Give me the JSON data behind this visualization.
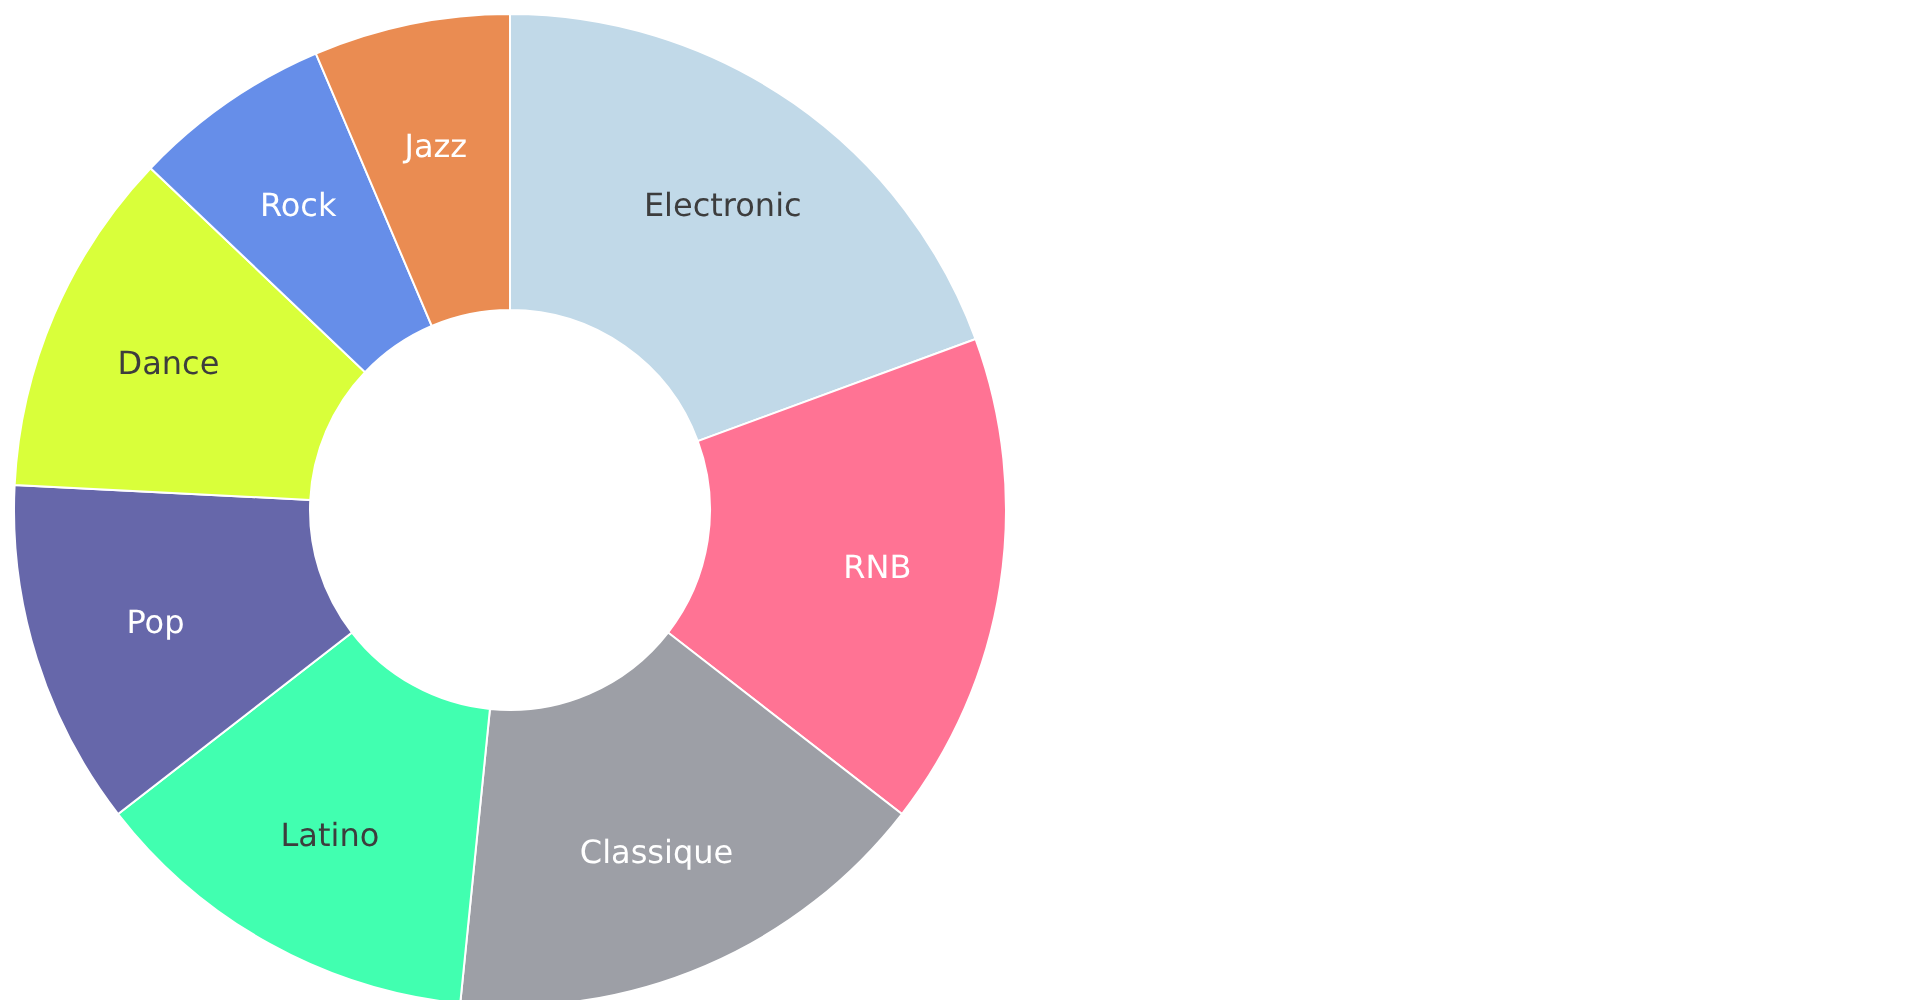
{
  "chart_data": {
    "type": "donut",
    "categories": [
      "Electronic",
      "RNB",
      "Classique",
      "Latino",
      "Pop",
      "Dance",
      "Rock",
      "Jazz"
    ],
    "values": [
      19.4,
      16.1,
      16.1,
      12.9,
      11.3,
      11.3,
      6.5,
      6.4
    ],
    "colors": [
      "#c1d9e8",
      "#ff7394",
      "#9d9fa6",
      "#41ffb0",
      "#6667aa",
      "#d9ff3a",
      "#668ee9",
      "#ea8c52"
    ]
  }
}
